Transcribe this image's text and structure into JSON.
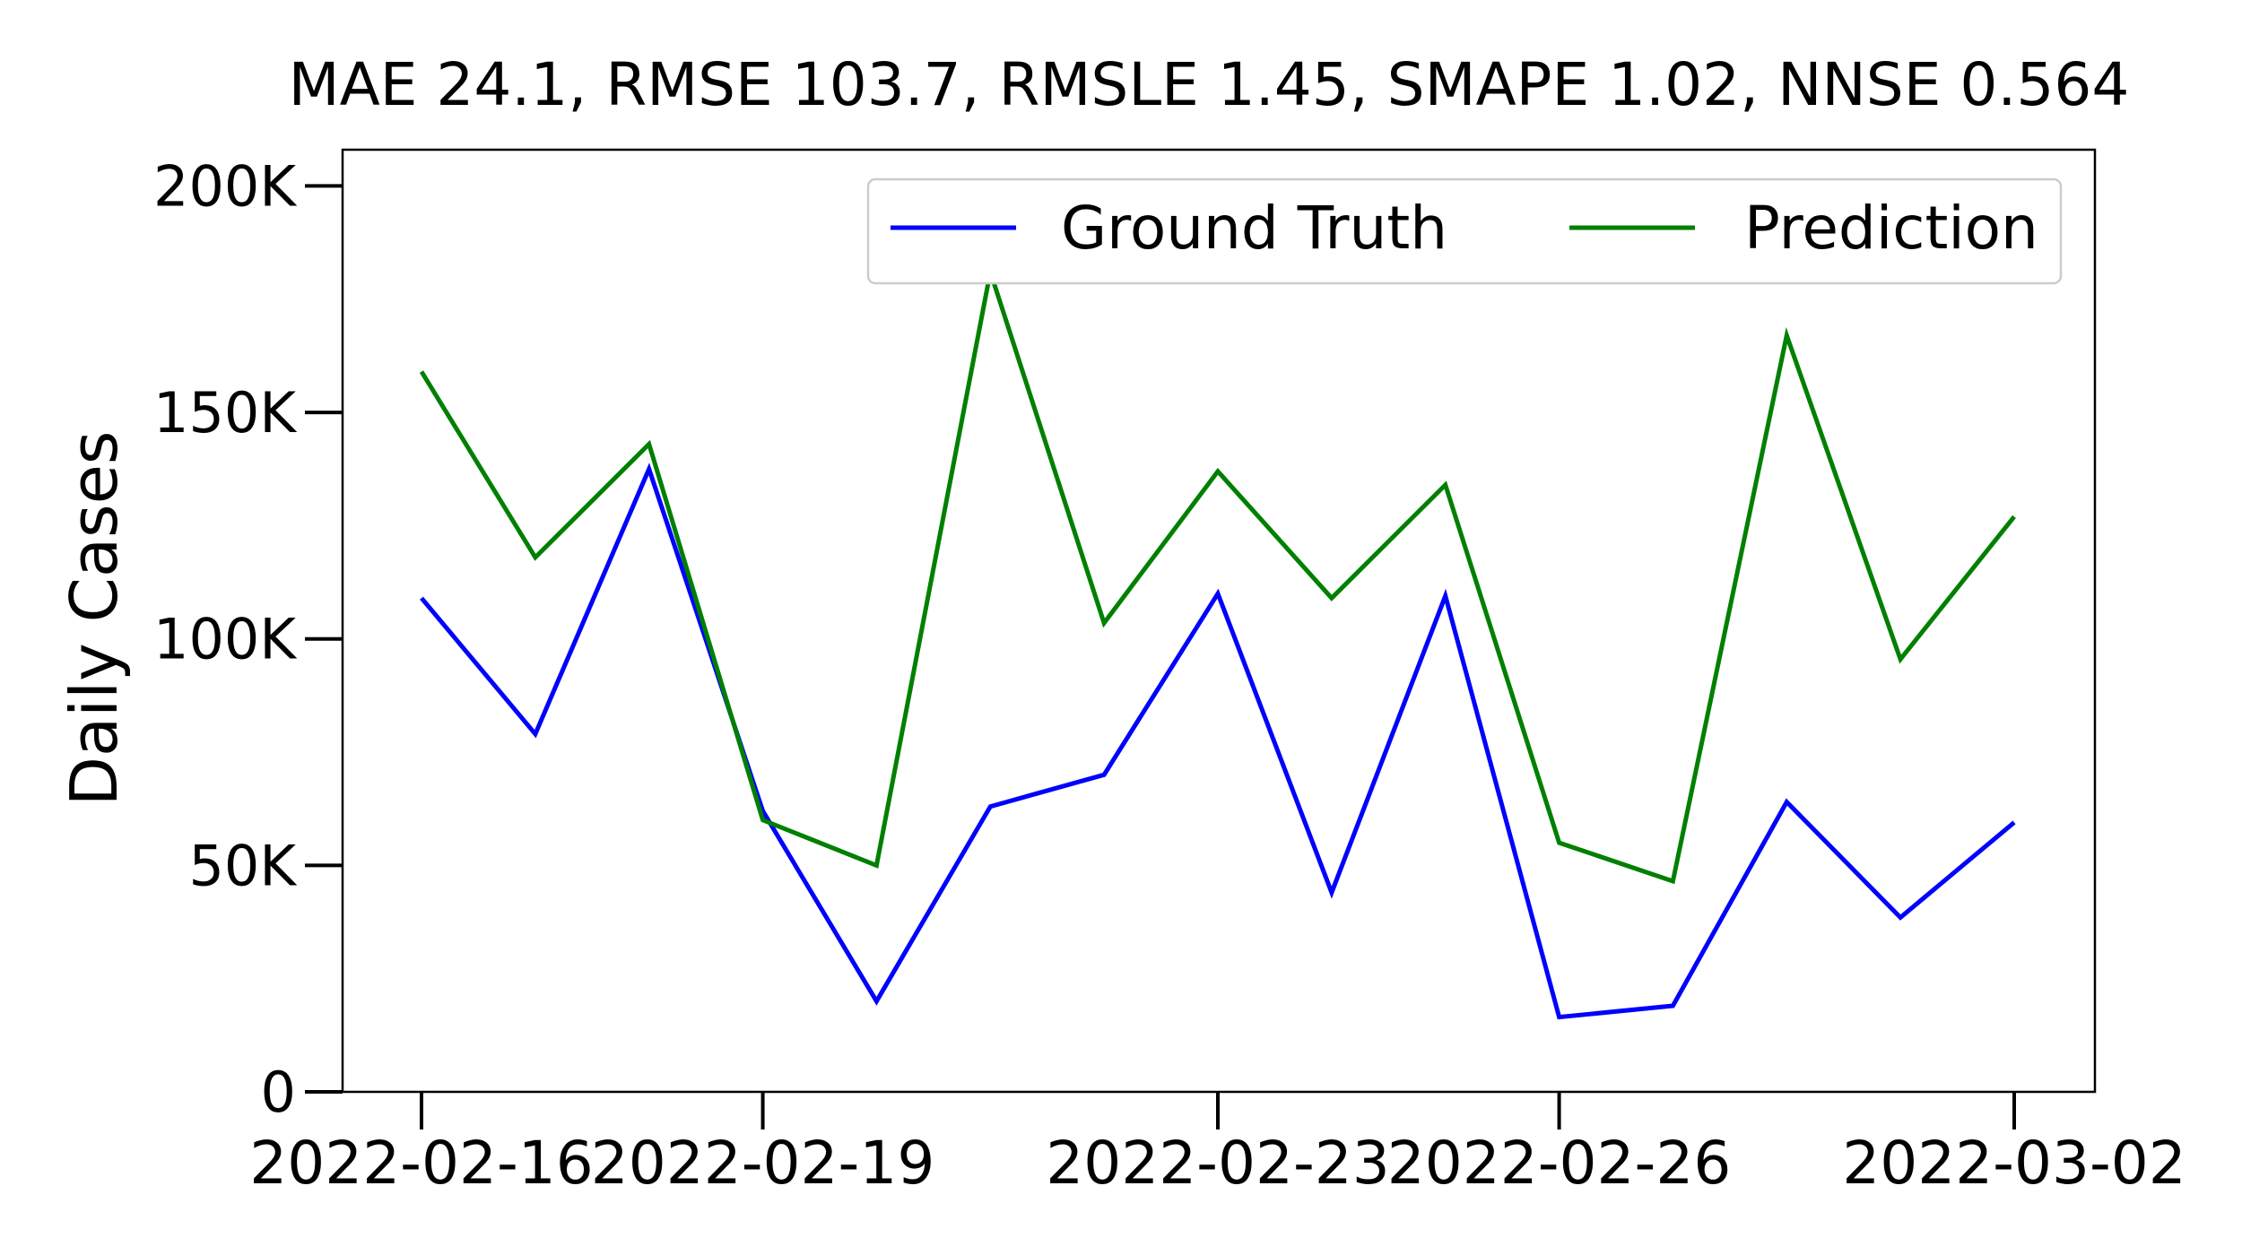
{
  "chart_data": {
    "type": "line",
    "title": "MAE 24.1, RMSE 103.7, RMSLE 1.45, SMAPE 1.02, NNSE 0.564",
    "xlabel": "",
    "ylabel": "Daily Cases",
    "x": [
      "2022-02-16",
      "2022-02-17",
      "2022-02-18",
      "2022-02-19",
      "2022-02-20",
      "2022-02-21",
      "2022-02-22",
      "2022-02-23",
      "2022-02-24",
      "2022-02-25",
      "2022-02-26",
      "2022-02-27",
      "2022-02-28",
      "2022-03-01",
      "2022-03-02"
    ],
    "x_tick_labels": [
      "2022-02-16",
      "2022-02-19",
      "2022-02-23",
      "2022-02-26",
      "2022-03-02"
    ],
    "y_tick_labels": [
      "0",
      "50K",
      "100K",
      "150K",
      "200K"
    ],
    "y_ticks": [
      0,
      50000,
      100000,
      150000,
      200000
    ],
    "ylim": [
      0,
      208000
    ],
    "legend_position": "top-right",
    "series": [
      {
        "name": "Ground Truth",
        "color": "#0000ff",
        "values": [
          109000,
          79000,
          137500,
          62000,
          20000,
          63000,
          70000,
          110000,
          44000,
          109500,
          16500,
          19000,
          64000,
          38500,
          59500
        ]
      },
      {
        "name": "Prediction",
        "color": "#008000",
        "values": [
          159000,
          118000,
          143000,
          60000,
          50000,
          181000,
          103500,
          137000,
          109000,
          134000,
          55000,
          46500,
          167000,
          95500,
          127000
        ]
      }
    ]
  }
}
